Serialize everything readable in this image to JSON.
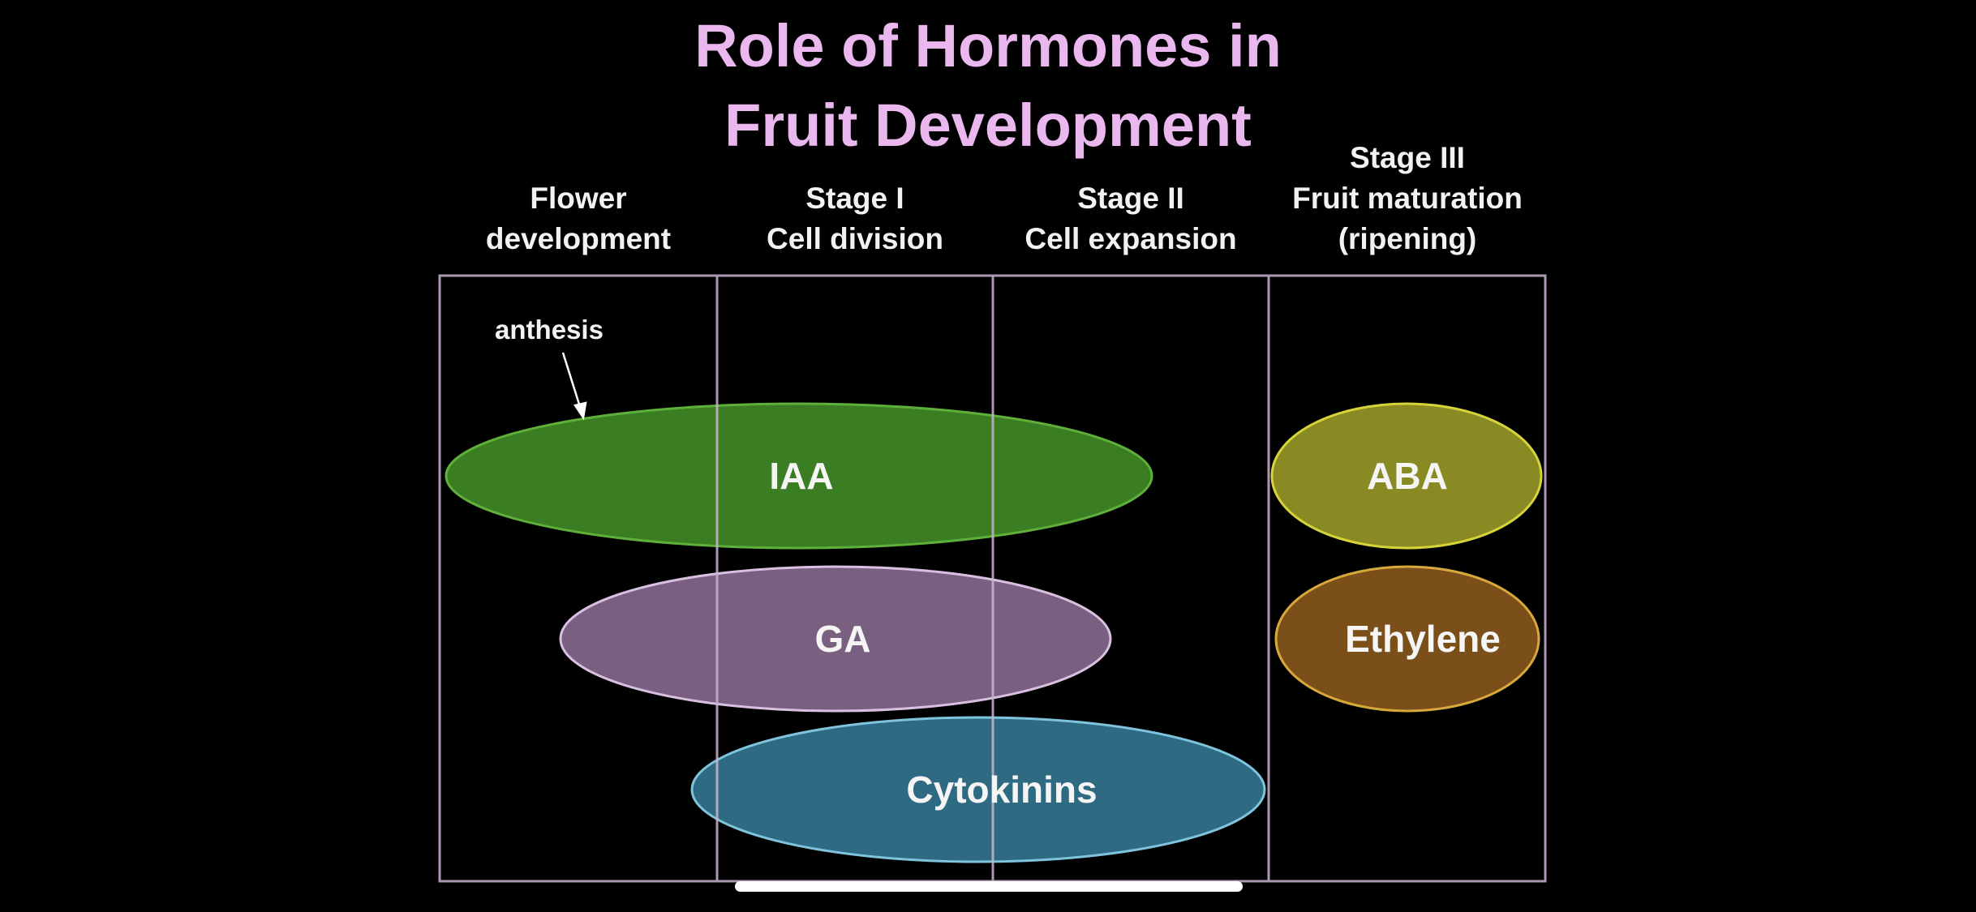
{
  "title": {
    "line1": "Role of Hormones in",
    "line2": "Fruit Development"
  },
  "stages": [
    {
      "lines": [
        "Flower",
        "development"
      ]
    },
    {
      "lines": [
        "Stage I",
        "Cell division"
      ]
    },
    {
      "lines": [
        "Stage II",
        "Cell expansion"
      ]
    },
    {
      "lines": [
        "Stage III",
        "Fruit maturation",
        "(ripening)"
      ]
    }
  ],
  "annotation": {
    "label": "anthesis"
  },
  "hormones": [
    {
      "label": "IAA",
      "fill": "#3a7d22",
      "stroke": "#5fb03a"
    },
    {
      "label": "GA",
      "fill": "#7a6080",
      "stroke": "#d9bfe0"
    },
    {
      "label": "Cytokinins",
      "fill": "#2e6a82",
      "stroke": "#7fc3dc"
    },
    {
      "label": "ABA",
      "fill": "#8a8a25",
      "stroke": "#d6d43a"
    },
    {
      "label": "Ethylene",
      "fill": "#7a4f1a",
      "stroke": "#d9a83a"
    }
  ],
  "colors": {
    "title": "#eab8ee",
    "grid": "#c8b4d0",
    "background": "#000000"
  }
}
